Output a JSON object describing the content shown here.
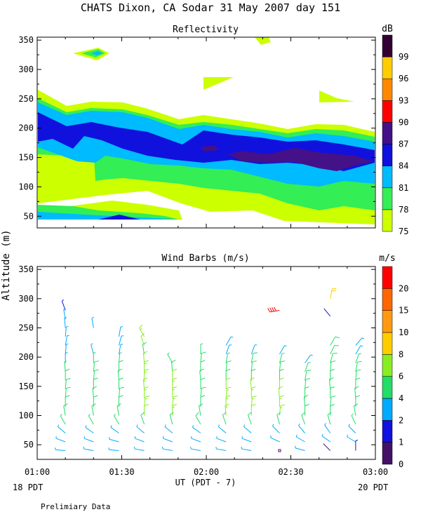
{
  "figure": {
    "title": "CHATS Dixon, CA  Sodar  31 May 2007  day 151",
    "ylabel": "Altitude (m)",
    "xlabel": "UT  (PDT - 7)",
    "x_left_note": "18 PDT",
    "x_right_note": "20 PDT",
    "footer": "Prelimiary Data"
  },
  "chart_data": [
    {
      "type": "heatmap",
      "title": "Reflectivity",
      "colorbar_label": "dB",
      "colorbar_levels": [
        "75",
        "78",
        "81",
        "84",
        "87",
        "90",
        "93",
        "96",
        "99"
      ],
      "colorbar_colors": [
        "#ccff00",
        "#33ee55",
        "#00bbff",
        "#1111dd",
        "#441188",
        "#ff0000",
        "#ff8800",
        "#ffcc00",
        "#330033"
      ],
      "x_ticks": [
        "01:00",
        "01:30",
        "02:00",
        "02:30",
        "03:00"
      ],
      "y_ticks": [
        "50",
        "100",
        "150",
        "200",
        "250",
        "300",
        "350"
      ],
      "xlim": [
        "01:00",
        "03:00"
      ],
      "ylim": [
        30,
        355
      ],
      "grid": false
    },
    {
      "type": "scatter",
      "title": "Wind Barbs (m/s)",
      "colorbar_label": "m/s",
      "colorbar_levels": [
        "0",
        "1",
        "2",
        "4",
        "6",
        "8",
        "10",
        "15",
        "20"
      ],
      "colorbar_colors": [
        "#441166",
        "#1111dd",
        "#00aaff",
        "#22dd66",
        "#88ee22",
        "#ffcc00",
        "#ff9911",
        "#ff6600",
        "#ff0000"
      ],
      "x_ticks": [
        "01:00",
        "01:30",
        "02:00",
        "02:30",
        "03:00"
      ],
      "y_ticks": [
        "50",
        "100",
        "150",
        "200",
        "250",
        "300",
        "350"
      ],
      "xlim": [
        "01:00",
        "03:00"
      ],
      "ylim": [
        25,
        355
      ],
      "grid": false,
      "profile_times": [
        "01:10",
        "01:20",
        "01:29",
        "01:38",
        "01:48",
        "01:58",
        "02:07",
        "02:16",
        "02:26",
        "02:35",
        "02:44",
        "02:53"
      ],
      "barbs": [
        {
          "t": "01:10",
          "h": 280,
          "s": 1.8,
          "d": 340
        },
        {
          "t": "01:10",
          "h": 265,
          "s": 2.2,
          "d": 350
        },
        {
          "t": "01:10",
          "h": 250,
          "s": 2.4,
          "d": 355
        },
        {
          "t": "01:10",
          "h": 235,
          "s": 2.6,
          "d": 5
        },
        {
          "t": "01:10",
          "h": 220,
          "s": 2.8,
          "d": 10
        },
        {
          "t": "01:10",
          "h": 205,
          "s": 3.2,
          "d": 5
        },
        {
          "t": "01:10",
          "h": 190,
          "s": 3.6,
          "d": 0
        },
        {
          "t": "01:10",
          "h": 175,
          "s": 4.2,
          "d": 355
        },
        {
          "t": "01:10",
          "h": 160,
          "s": 4.6,
          "d": 0
        },
        {
          "t": "01:10",
          "h": 145,
          "s": 5.0,
          "d": 5
        },
        {
          "t": "01:10",
          "h": 130,
          "s": 5.4,
          "d": 5
        },
        {
          "t": "01:10",
          "h": 115,
          "s": 5.6,
          "d": 0
        },
        {
          "t": "01:10",
          "h": 100,
          "s": 5.0,
          "d": 350
        },
        {
          "t": "01:10",
          "h": 85,
          "s": 4.4,
          "d": 330
        },
        {
          "t": "01:10",
          "h": 70,
          "s": 3.8,
          "d": 310
        },
        {
          "t": "01:10",
          "h": 55,
          "s": 3.4,
          "d": 290
        },
        {
          "t": "01:10",
          "h": 40,
          "s": 3.0,
          "d": 275
        },
        {
          "t": "01:20",
          "h": 250,
          "s": 2.4,
          "d": 350
        },
        {
          "t": "01:20",
          "h": 205,
          "s": 3.4,
          "d": 345
        },
        {
          "t": "01:20",
          "h": 190,
          "s": 4.0,
          "d": 0
        },
        {
          "t": "01:20",
          "h": 175,
          "s": 4.5,
          "d": 5
        },
        {
          "t": "01:20",
          "h": 160,
          "s": 5.0,
          "d": 5
        },
        {
          "t": "01:20",
          "h": 145,
          "s": 5.4,
          "d": 0
        },
        {
          "t": "01:20",
          "h": 130,
          "s": 5.6,
          "d": 355
        },
        {
          "t": "01:20",
          "h": 115,
          "s": 5.4,
          "d": 0
        },
        {
          "t": "01:20",
          "h": 100,
          "s": 5.0,
          "d": 350
        },
        {
          "t": "01:20",
          "h": 85,
          "s": 4.2,
          "d": 330
        },
        {
          "t": "01:20",
          "h": 70,
          "s": 3.6,
          "d": 305
        },
        {
          "t": "01:20",
          "h": 55,
          "s": 3.2,
          "d": 290
        },
        {
          "t": "01:20",
          "h": 40,
          "s": 2.8,
          "d": 280
        },
        {
          "t": "01:29",
          "h": 235,
          "s": 3.0,
          "d": 10
        },
        {
          "t": "01:29",
          "h": 220,
          "s": 3.4,
          "d": 15
        },
        {
          "t": "01:29",
          "h": 205,
          "s": 3.8,
          "d": 10
        },
        {
          "t": "01:29",
          "h": 190,
          "s": 4.4,
          "d": 5
        },
        {
          "t": "01:29",
          "h": 175,
          "s": 4.8,
          "d": 0
        },
        {
          "t": "01:29",
          "h": 160,
          "s": 5.2,
          "d": 355
        },
        {
          "t": "01:29",
          "h": 145,
          "s": 5.6,
          "d": 0
        },
        {
          "t": "01:29",
          "h": 130,
          "s": 5.8,
          "d": 5
        },
        {
          "t": "01:29",
          "h": 115,
          "s": 5.6,
          "d": 0
        },
        {
          "t": "01:29",
          "h": 100,
          "s": 5.0,
          "d": 350
        },
        {
          "t": "01:29",
          "h": 85,
          "s": 4.4,
          "d": 330
        },
        {
          "t": "01:29",
          "h": 70,
          "s": 3.6,
          "d": 305
        },
        {
          "t": "01:29",
          "h": 55,
          "s": 3.2,
          "d": 285
        },
        {
          "t": "01:29",
          "h": 40,
          "s": 2.8,
          "d": 275
        },
        {
          "t": "01:38",
          "h": 235,
          "s": 6.6,
          "d": 330
        },
        {
          "t": "01:38",
          "h": 220,
          "s": 6.2,
          "d": 340
        },
        {
          "t": "01:38",
          "h": 205,
          "s": 5.8,
          "d": 350
        },
        {
          "t": "01:38",
          "h": 190,
          "s": 6.2,
          "d": 355
        },
        {
          "t": "01:38",
          "h": 175,
          "s": 6.8,
          "d": 0
        },
        {
          "t": "01:38",
          "h": 160,
          "s": 7.0,
          "d": 0
        },
        {
          "t": "01:38",
          "h": 145,
          "s": 7.2,
          "d": 355
        },
        {
          "t": "01:38",
          "h": 130,
          "s": 7.0,
          "d": 0
        },
        {
          "t": "01:38",
          "h": 115,
          "s": 6.6,
          "d": 5
        },
        {
          "t": "01:38",
          "h": 100,
          "s": 6.0,
          "d": 0
        },
        {
          "t": "01:38",
          "h": 85,
          "s": 4.8,
          "d": 340
        },
        {
          "t": "01:38",
          "h": 70,
          "s": 3.6,
          "d": 310
        },
        {
          "t": "01:38",
          "h": 55,
          "s": 3.0,
          "d": 290
        },
        {
          "t": "01:38",
          "h": 40,
          "s": 2.6,
          "d": 280
        },
        {
          "t": "01:48",
          "h": 190,
          "s": 4.2,
          "d": 330
        },
        {
          "t": "01:48",
          "h": 175,
          "s": 5.2,
          "d": 355
        },
        {
          "t": "01:48",
          "h": 160,
          "s": 6.2,
          "d": 0
        },
        {
          "t": "01:48",
          "h": 145,
          "s": 6.8,
          "d": 0
        },
        {
          "t": "01:48",
          "h": 130,
          "s": 7.0,
          "d": 0
        },
        {
          "t": "01:48",
          "h": 115,
          "s": 7.2,
          "d": 5
        },
        {
          "t": "01:48",
          "h": 100,
          "s": 6.8,
          "d": 0
        },
        {
          "t": "01:48",
          "h": 85,
          "s": 5.6,
          "d": 345
        },
        {
          "t": "01:48",
          "h": 70,
          "s": 3.8,
          "d": 310
        },
        {
          "t": "01:48",
          "h": 55,
          "s": 3.0,
          "d": 290
        },
        {
          "t": "01:48",
          "h": 40,
          "s": 2.6,
          "d": 280
        },
        {
          "t": "01:58",
          "h": 205,
          "s": 4.4,
          "d": 0
        },
        {
          "t": "01:58",
          "h": 190,
          "s": 4.8,
          "d": 5
        },
        {
          "t": "01:58",
          "h": 175,
          "s": 5.2,
          "d": 0
        },
        {
          "t": "01:58",
          "h": 160,
          "s": 5.4,
          "d": 355
        },
        {
          "t": "01:58",
          "h": 145,
          "s": 5.6,
          "d": 0
        },
        {
          "t": "01:58",
          "h": 130,
          "s": 5.8,
          "d": 5
        },
        {
          "t": "01:58",
          "h": 115,
          "s": 5.8,
          "d": 0
        },
        {
          "t": "01:58",
          "h": 100,
          "s": 5.4,
          "d": 350
        },
        {
          "t": "01:58",
          "h": 85,
          "s": 4.6,
          "d": 330
        },
        {
          "t": "01:58",
          "h": 70,
          "s": 3.8,
          "d": 305
        },
        {
          "t": "01:58",
          "h": 55,
          "s": 3.2,
          "d": 290
        },
        {
          "t": "01:58",
          "h": 40,
          "s": 2.8,
          "d": 280
        },
        {
          "t": "02:07",
          "h": 220,
          "s": 3.4,
          "d": 30
        },
        {
          "t": "02:07",
          "h": 205,
          "s": 3.8,
          "d": 20
        },
        {
          "t": "02:07",
          "h": 190,
          "s": 4.4,
          "d": 10
        },
        {
          "t": "02:07",
          "h": 175,
          "s": 5.0,
          "d": 5
        },
        {
          "t": "02:07",
          "h": 160,
          "s": 5.8,
          "d": 0
        },
        {
          "t": "02:07",
          "h": 145,
          "s": 6.4,
          "d": 0
        },
        {
          "t": "02:07",
          "h": 130,
          "s": 6.8,
          "d": 5
        },
        {
          "t": "02:07",
          "h": 115,
          "s": 7.0,
          "d": 0
        },
        {
          "t": "02:07",
          "h": 100,
          "s": 6.6,
          "d": 355
        },
        {
          "t": "02:07",
          "h": 85,
          "s": 5.2,
          "d": 340
        },
        {
          "t": "02:07",
          "h": 70,
          "s": 3.8,
          "d": 310
        },
        {
          "t": "02:07",
          "h": 55,
          "s": 3.2,
          "d": 290
        },
        {
          "t": "02:07",
          "h": 40,
          "s": 2.8,
          "d": 280
        },
        {
          "t": "02:16",
          "h": 205,
          "s": 3.8,
          "d": 20
        },
        {
          "t": "02:16",
          "h": 190,
          "s": 4.6,
          "d": 10
        },
        {
          "t": "02:16",
          "h": 175,
          "s": 5.2,
          "d": 5
        },
        {
          "t": "02:16",
          "h": 160,
          "s": 5.6,
          "d": 0
        },
        {
          "t": "02:16",
          "h": 145,
          "s": 6.2,
          "d": 355
        },
        {
          "t": "02:16",
          "h": 130,
          "s": 6.6,
          "d": 0
        },
        {
          "t": "02:16",
          "h": 115,
          "s": 6.8,
          "d": 5
        },
        {
          "t": "02:16",
          "h": 100,
          "s": 6.4,
          "d": 0
        },
        {
          "t": "02:16",
          "h": 85,
          "s": 5.0,
          "d": 340
        },
        {
          "t": "02:16",
          "h": 70,
          "s": 3.8,
          "d": 310
        },
        {
          "t": "02:16",
          "h": 55,
          "s": 3.2,
          "d": 290
        },
        {
          "t": "02:16",
          "h": 40,
          "s": 2.8,
          "d": 280
        },
        {
          "t": "02:26",
          "h": 280,
          "s": 21.0,
          "d": 260
        },
        {
          "t": "02:26",
          "h": 205,
          "s": 3.6,
          "d": 30
        },
        {
          "t": "02:26",
          "h": 190,
          "s": 4.2,
          "d": 15
        },
        {
          "t": "02:26",
          "h": 175,
          "s": 5.0,
          "d": 5
        },
        {
          "t": "02:26",
          "h": 160,
          "s": 5.6,
          "d": 0
        },
        {
          "t": "02:26",
          "h": 145,
          "s": 6.0,
          "d": 0
        },
        {
          "t": "02:26",
          "h": 130,
          "s": 6.4,
          "d": 355
        },
        {
          "t": "02:26",
          "h": 115,
          "s": 6.8,
          "d": 0
        },
        {
          "t": "02:26",
          "h": 100,
          "s": 6.6,
          "d": 5
        },
        {
          "t": "02:26",
          "h": 85,
          "s": 5.4,
          "d": 345
        },
        {
          "t": "02:26",
          "h": 70,
          "s": 3.8,
          "d": 315
        },
        {
          "t": "02:26",
          "h": 55,
          "s": 3.2,
          "d": 295
        },
        {
          "t": "02:26",
          "h": 40,
          "s": 0.4,
          "d": 0
        },
        {
          "t": "02:35",
          "h": 190,
          "s": 3.4,
          "d": 35
        },
        {
          "t": "02:35",
          "h": 175,
          "s": 4.2,
          "d": 20
        },
        {
          "t": "02:35",
          "h": 160,
          "s": 4.8,
          "d": 10
        },
        {
          "t": "02:35",
          "h": 145,
          "s": 5.2,
          "d": 5
        },
        {
          "t": "02:35",
          "h": 130,
          "s": 5.6,
          "d": 0
        },
        {
          "t": "02:35",
          "h": 115,
          "s": 5.8,
          "d": 355
        },
        {
          "t": "02:35",
          "h": 100,
          "s": 5.6,
          "d": 0
        },
        {
          "t": "02:35",
          "h": 85,
          "s": 4.8,
          "d": 340
        },
        {
          "t": "02:35",
          "h": 70,
          "s": 3.8,
          "d": 320
        },
        {
          "t": "02:35",
          "h": 55,
          "s": 3.2,
          "d": 300
        },
        {
          "t": "02:35",
          "h": 40,
          "s": 2.8,
          "d": 285
        },
        {
          "t": "02:44",
          "h": 300,
          "s": 9.5,
          "d": 10
        },
        {
          "t": "02:44",
          "h": 270,
          "s": 1.0,
          "d": 320
        },
        {
          "t": "02:44",
          "h": 220,
          "s": 5.4,
          "d": 30
        },
        {
          "t": "02:44",
          "h": 205,
          "s": 5.2,
          "d": 25
        },
        {
          "t": "02:44",
          "h": 190,
          "s": 5.0,
          "d": 15
        },
        {
          "t": "02:44",
          "h": 175,
          "s": 5.0,
          "d": 5
        },
        {
          "t": "02:44",
          "h": 160,
          "s": 5.2,
          "d": 0
        },
        {
          "t": "02:44",
          "h": 145,
          "s": 5.4,
          "d": 355
        },
        {
          "t": "02:44",
          "h": 130,
          "s": 5.6,
          "d": 0
        },
        {
          "t": "02:44",
          "h": 115,
          "s": 5.8,
          "d": 5
        },
        {
          "t": "02:44",
          "h": 100,
          "s": 5.6,
          "d": 0
        },
        {
          "t": "02:44",
          "h": 85,
          "s": 4.8,
          "d": 345
        },
        {
          "t": "02:44",
          "h": 70,
          "s": 3.8,
          "d": 325
        },
        {
          "t": "02:44",
          "h": 55,
          "s": 3.2,
          "d": 305
        },
        {
          "t": "02:44",
          "h": 40,
          "s": 0.8,
          "d": 315
        },
        {
          "t": "02:53",
          "h": 220,
          "s": 2.6,
          "d": 40
        },
        {
          "t": "02:53",
          "h": 205,
          "s": 3.4,
          "d": 30
        },
        {
          "t": "02:53",
          "h": 190,
          "s": 4.2,
          "d": 20
        },
        {
          "t": "02:53",
          "h": 175,
          "s": 4.8,
          "d": 10
        },
        {
          "t": "02:53",
          "h": 160,
          "s": 5.2,
          "d": 5
        },
        {
          "t": "02:53",
          "h": 145,
          "s": 5.6,
          "d": 0
        },
        {
          "t": "02:53",
          "h": 130,
          "s": 5.8,
          "d": 355
        },
        {
          "t": "02:53",
          "h": 115,
          "s": 5.6,
          "d": 0
        },
        {
          "t": "02:53",
          "h": 100,
          "s": 5.2,
          "d": 350
        },
        {
          "t": "02:53",
          "h": 85,
          "s": 4.4,
          "d": 335
        },
        {
          "t": "02:53",
          "h": 70,
          "s": 3.6,
          "d": 315
        },
        {
          "t": "02:53",
          "h": 55,
          "s": 3.0,
          "d": 300
        },
        {
          "t": "02:53",
          "h": 40,
          "s": 1.6,
          "d": 0
        }
      ]
    }
  ]
}
